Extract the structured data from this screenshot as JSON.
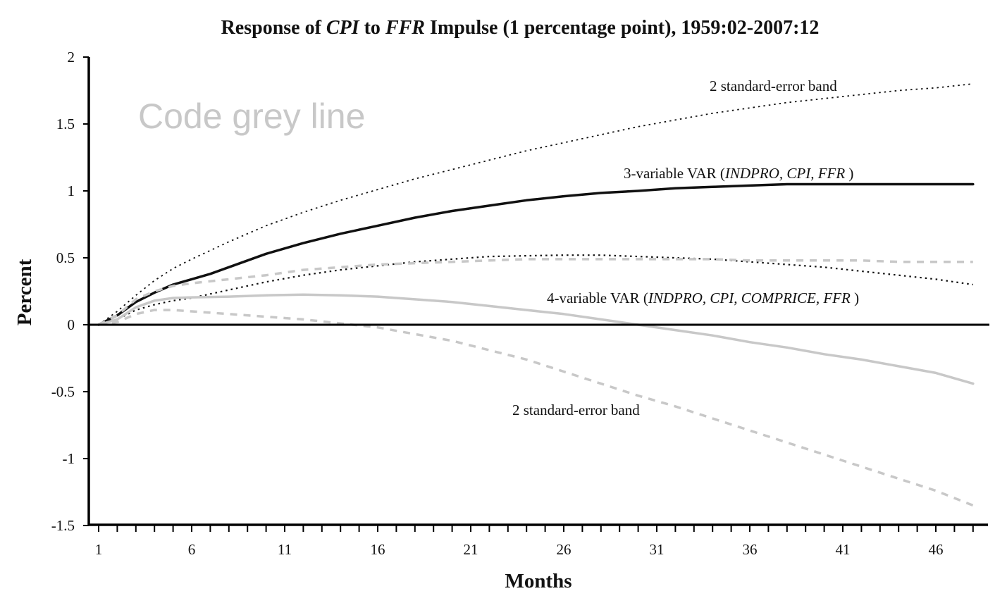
{
  "chart_data": {
    "type": "line",
    "title_parts": [
      {
        "text": "Response of ",
        "italic": false
      },
      {
        "text": "CPI",
        "italic": true
      },
      {
        "text": "  to ",
        "italic": false
      },
      {
        "text": "FFR",
        "italic": true
      },
      {
        "text": "  Impulse (1 percentage point), 1959:02-2007:12",
        "italic": false
      }
    ],
    "xlabel": "Months",
    "ylabel": "Percent",
    "xlim": [
      1,
      48
    ],
    "ylim": [
      -1.5,
      2
    ],
    "yticks": [
      -1.5,
      -1,
      -0.5,
      0,
      0.5,
      1,
      1.5,
      2
    ],
    "ytick_labels": [
      "-1.5",
      "-1",
      "-0.5",
      "0",
      "0.5",
      "1",
      "1.5",
      "2"
    ],
    "xticks": [
      1,
      6,
      11,
      16,
      21,
      26,
      31,
      36,
      41,
      46
    ],
    "xtick_labels": [
      "1",
      "6",
      "11",
      "16",
      "21",
      "26",
      "31",
      "36",
      "41",
      "46"
    ],
    "grid": false,
    "zero_line": true,
    "watermark": "Code grey line",
    "series": [
      {
        "color": "#111111",
        "style": "solid",
        "width": 3.5,
        "x": [
          1,
          2,
          3,
          4,
          5,
          6,
          7,
          8,
          10,
          12,
          14,
          16,
          18,
          20,
          22,
          24,
          26,
          28,
          30,
          32,
          34,
          36,
          38,
          40,
          42,
          44,
          46,
          48
        ],
        "y": [
          0,
          0.07,
          0.17,
          0.24,
          0.3,
          0.34,
          0.38,
          0.43,
          0.53,
          0.61,
          0.68,
          0.74,
          0.8,
          0.85,
          0.89,
          0.93,
          0.96,
          0.985,
          1.0,
          1.02,
          1.03,
          1.04,
          1.05,
          1.05,
          1.05,
          1.05,
          1.05,
          1.05
        ]
      },
      {
        "color": "#111111",
        "style": "dotted",
        "width": 1.8,
        "x": [
          1,
          2,
          3,
          4,
          5,
          6,
          8,
          10,
          12,
          14,
          16,
          18,
          20,
          22,
          24,
          26,
          28,
          30,
          32,
          34,
          36,
          38,
          40,
          42,
          44,
          46,
          48
        ],
        "y": [
          0,
          0.1,
          0.22,
          0.33,
          0.42,
          0.49,
          0.62,
          0.74,
          0.84,
          0.93,
          1.01,
          1.09,
          1.16,
          1.23,
          1.3,
          1.36,
          1.42,
          1.48,
          1.53,
          1.58,
          1.62,
          1.66,
          1.69,
          1.72,
          1.75,
          1.77,
          1.8
        ]
      },
      {
        "color": "#111111",
        "style": "dotted",
        "width": 2.2,
        "x": [
          1,
          2,
          3,
          4,
          5,
          6,
          8,
          10,
          12,
          14,
          16,
          18,
          20,
          22,
          24,
          26,
          28,
          30,
          32,
          34,
          36,
          38,
          40,
          42,
          44,
          46,
          48
        ],
        "y": [
          0,
          0.04,
          0.11,
          0.15,
          0.18,
          0.2,
          0.26,
          0.32,
          0.37,
          0.41,
          0.44,
          0.47,
          0.49,
          0.51,
          0.515,
          0.52,
          0.52,
          0.51,
          0.5,
          0.49,
          0.47,
          0.45,
          0.43,
          0.4,
          0.37,
          0.34,
          0.3
        ]
      },
      {
        "color": "#c8c8c8",
        "style": "solid",
        "width": 3.5,
        "x": [
          1,
          2,
          3,
          4,
          5,
          6,
          8,
          10,
          12,
          14,
          16,
          18,
          20,
          22,
          24,
          26,
          28,
          30,
          32,
          34,
          36,
          38,
          40,
          42,
          44,
          46,
          48
        ],
        "y": [
          0,
          0.04,
          0.13,
          0.18,
          0.2,
          0.205,
          0.21,
          0.22,
          0.225,
          0.22,
          0.21,
          0.19,
          0.17,
          0.14,
          0.11,
          0.08,
          0.04,
          0.0,
          -0.04,
          -0.08,
          -0.13,
          -0.17,
          -0.22,
          -0.26,
          -0.31,
          -0.36,
          -0.44
        ]
      },
      {
        "color": "#c8c8c8",
        "style": "dashed",
        "width": 3.5,
        "x": [
          1,
          2,
          3,
          4,
          5,
          6,
          8,
          10,
          12,
          14,
          16,
          18,
          20,
          22,
          24,
          26,
          28,
          30,
          32,
          34,
          36,
          38,
          40,
          42,
          44,
          46,
          48
        ],
        "y": [
          0,
          0.07,
          0.19,
          0.25,
          0.29,
          0.31,
          0.34,
          0.37,
          0.41,
          0.43,
          0.45,
          0.46,
          0.47,
          0.48,
          0.49,
          0.49,
          0.49,
          0.49,
          0.49,
          0.49,
          0.48,
          0.48,
          0.48,
          0.48,
          0.47,
          0.47,
          0.47
        ]
      },
      {
        "color": "#c8c8c8",
        "style": "dashed",
        "width": 3.5,
        "x": [
          1,
          2,
          3,
          4,
          5,
          6,
          8,
          10,
          12,
          14,
          16,
          18,
          20,
          22,
          24,
          26,
          28,
          30,
          32,
          34,
          36,
          38,
          40,
          42,
          44,
          46,
          48
        ],
        "y": [
          0,
          0.02,
          0.08,
          0.11,
          0.11,
          0.1,
          0.08,
          0.06,
          0.04,
          0.01,
          -0.02,
          -0.07,
          -0.12,
          -0.19,
          -0.26,
          -0.35,
          -0.44,
          -0.53,
          -0.61,
          -0.7,
          -0.79,
          -0.88,
          -0.97,
          -1.06,
          -1.15,
          -1.24,
          -1.35
        ]
      }
    ],
    "annotations": [
      {
        "id": "upper-band",
        "parts": [
          {
            "text": "2 standard-error band",
            "italic": false
          }
        ]
      },
      {
        "id": "var3",
        "parts": [
          {
            "text": "3-variable VAR (",
            "italic": false
          },
          {
            "text": "INDPRO, CPI, FFR ",
            "italic": true
          },
          {
            "text": ")",
            "italic": false
          }
        ]
      },
      {
        "id": "var4",
        "parts": [
          {
            "text": "4-variable VAR (",
            "italic": false
          },
          {
            "text": "INDPRO, CPI, COMPRICE, FFR ",
            "italic": true
          },
          {
            "text": ")",
            "italic": false
          }
        ]
      },
      {
        "id": "lower-band",
        "parts": [
          {
            "text": "2 standard-error band",
            "italic": false
          }
        ]
      }
    ]
  }
}
